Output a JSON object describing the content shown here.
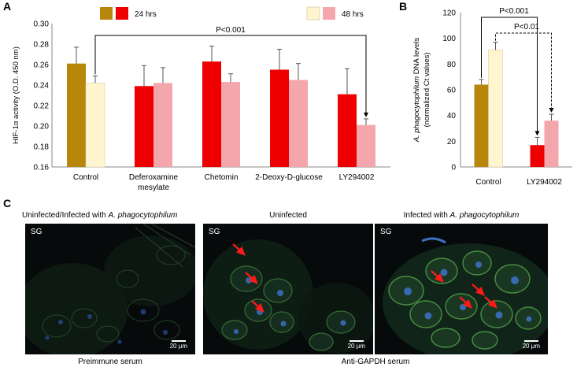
{
  "panels": {
    "a": "A",
    "b": "B",
    "c": "C"
  },
  "chart_data": [
    {
      "type": "bar",
      "title": "",
      "ylabel": "HIF-1α activity (O.D. 450 nm)",
      "ylim": [
        0.16,
        0.3
      ],
      "yticks": [
        "0.16",
        "0.18",
        "0.20",
        "0.22",
        "0.24",
        "0.26",
        "0.28",
        "0.30"
      ],
      "categories": [
        "Control",
        "Deferoxamine mesylate",
        "Chetomin",
        "2-Deoxy-D-glucose",
        "LY294002"
      ],
      "category_lines": [
        [
          "Control"
        ],
        [
          "Deferoxamine",
          "mesylate"
        ],
        [
          "Chetomin"
        ],
        [
          "2-Deoxy-D-glucose"
        ],
        [
          "LY294002"
        ]
      ],
      "series": [
        {
          "name": "24 hrs",
          "values": [
            0.261,
            0.239,
            0.263,
            0.255,
            0.231
          ],
          "errors": [
            0.016,
            0.02,
            0.015,
            0.02,
            0.025
          ],
          "colors": [
            "#b8860b",
            "#ee0000",
            "#ee0000",
            "#ee0000",
            "#ee0000"
          ]
        },
        {
          "name": "48 hrs",
          "values": [
            0.242,
            0.242,
            0.243,
            0.245,
            0.201
          ],
          "errors": [
            0.007,
            0.015,
            0.008,
            0.016,
            0.006
          ],
          "colors": [
            "#fff5cf",
            "#f4a6ad",
            "#f4a6ad",
            "#f4a6ad",
            "#f4a6ad"
          ]
        }
      ],
      "legend": [
        {
          "label": "24 hrs",
          "colors": [
            "#b8860b",
            "#ee0000"
          ]
        },
        {
          "label": "48 hrs",
          "colors": [
            "#fff5cf",
            "#f4a6ad"
          ]
        }
      ],
      "annotations": [
        {
          "text": "P<0.001",
          "from": "Control",
          "to": "LY294002"
        }
      ]
    },
    {
      "type": "bar",
      "title": "",
      "ylabel_italic": "A. phagocytophilum",
      "ylabel_rest": " DNA levels",
      "ylabel2": "(normalized Ct values)",
      "ylim": [
        0,
        120
      ],
      "yticks": [
        "0",
        "20",
        "40",
        "60",
        "80",
        "100",
        "120"
      ],
      "categories": [
        "Control",
        "LY294002"
      ],
      "series": [
        {
          "name": "24 hrs",
          "values": [
            64,
            17
          ],
          "errors": [
            4,
            6
          ],
          "colors": [
            "#b8860b",
            "#ee0000"
          ]
        },
        {
          "name": "48 hrs",
          "values": [
            91,
            36
          ],
          "errors": [
            6,
            5
          ],
          "colors": [
            "#fff5cf",
            "#f4a6ad"
          ]
        }
      ],
      "annotations": [
        {
          "text": "P<0.001",
          "from": "Control 24 hrs",
          "to": "LY294002 24 hrs",
          "style": "solid"
        },
        {
          "text": "P<0.01",
          "from": "Control 48 hrs",
          "to": "LY294002 48 hrs",
          "style": "dashed"
        }
      ]
    }
  ],
  "panel_c": {
    "headers": {
      "left_prefix": "Uninfected/Infected with ",
      "left_italic": "A. phagocytophilum",
      "middle": "Uninfected",
      "right_prefix": "Infected with ",
      "right_italic": "A. phagocytophilum"
    },
    "images": [
      {
        "sg": "SG",
        "scale": "20 μm"
      },
      {
        "sg": "SG",
        "scale": "20 μm"
      },
      {
        "sg": "SG",
        "scale": "20 μm"
      }
    ],
    "captions": {
      "left": "Preimmune  serum",
      "right": "Anti-GAPDH serum"
    },
    "colors": {
      "green": "#3f7a3a",
      "blue": "#3d6fc0",
      "arrow": "#ff1a1a"
    }
  }
}
